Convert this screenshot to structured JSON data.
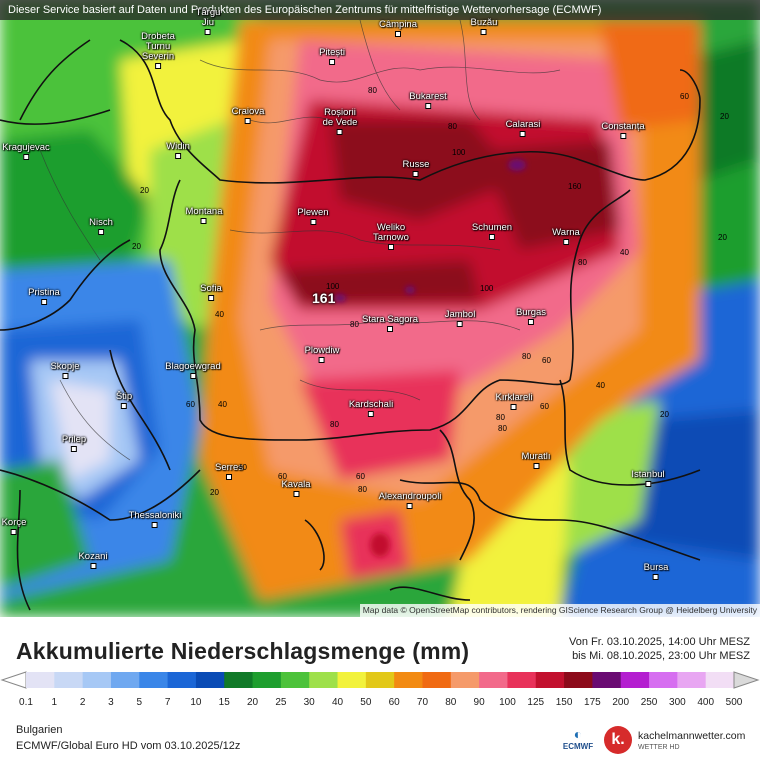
{
  "header": {
    "notice": "Dieser Service basiert auf Daten und Produkten des Europäischen Zentrums für mittelfristige Wettervorhersage (ECMWF)"
  },
  "map": {
    "attribution": "Map data © OpenStreetMap contributors, rendering GIScience Research Group @ Heidelberg University",
    "max_value_label": "161",
    "cities": [
      {
        "name": "Targu Jiu",
        "label": "Târgu\nJiu"
      },
      {
        "name": "Campina",
        "label": "Câmpina"
      },
      {
        "name": "Buzau",
        "label": "Buzău"
      },
      {
        "name": "Pitesti",
        "label": "Pitești"
      },
      {
        "name": "Drobeta Turnu Severin",
        "label": "Drobeta\nTurnu\nSeverin"
      },
      {
        "name": "Bukarest",
        "label": "Bukarest"
      },
      {
        "name": "Craiova",
        "label": "Craiova"
      },
      {
        "name": "Rosiorii de Vede",
        "label": "Roșiorii\nde Vede"
      },
      {
        "name": "Calarasi",
        "label": "Calarasi"
      },
      {
        "name": "Constanta",
        "label": "Constanța"
      },
      {
        "name": "Kragujevac",
        "label": "Kragujevac"
      },
      {
        "name": "Widin",
        "label": "Widin"
      },
      {
        "name": "Russe",
        "label": "Russe"
      },
      {
        "name": "Montana",
        "label": "Montana"
      },
      {
        "name": "Plewen",
        "label": "Plewen"
      },
      {
        "name": "Nisch",
        "label": "Nisch"
      },
      {
        "name": "Schumen",
        "label": "Schumen"
      },
      {
        "name": "Warna",
        "label": "Warna"
      },
      {
        "name": "Weliko Tarnowo",
        "label": "Weliko\nTarnowo"
      },
      {
        "name": "Pristina",
        "label": "Pristina"
      },
      {
        "name": "Sofia",
        "label": "Sofia"
      },
      {
        "name": "Stara Sagora",
        "label": "Stara Sagora"
      },
      {
        "name": "Jambol",
        "label": "Jambol"
      },
      {
        "name": "Burgas",
        "label": "Burgas"
      },
      {
        "name": "Plowdiw",
        "label": "Plowdiw"
      },
      {
        "name": "Skopje",
        "label": "Skopje"
      },
      {
        "name": "Blagoewgrad",
        "label": "Blagoewgrad"
      },
      {
        "name": "Stip",
        "label": "Štip"
      },
      {
        "name": "Kardschali",
        "label": "Kardschali"
      },
      {
        "name": "Kirklareli",
        "label": "Kırklareli"
      },
      {
        "name": "Prilep",
        "label": "Prilep"
      },
      {
        "name": "Muratli",
        "label": "Muratlı"
      },
      {
        "name": "Serres",
        "label": "Serres"
      },
      {
        "name": "Istanbul",
        "label": "Istanbul"
      },
      {
        "name": "Kavala",
        "label": "Kavala"
      },
      {
        "name": "Alexandroupoli",
        "label": "Alexandroupoli"
      },
      {
        "name": "Thessaloniki",
        "label": "Thessaloniki"
      },
      {
        "name": "Korce",
        "label": "Korçe"
      },
      {
        "name": "Kozani",
        "label": "Kozani"
      },
      {
        "name": "Bursa",
        "label": "Bursa"
      }
    ],
    "isolines": [
      "80",
      "80",
      "100",
      "160",
      "60",
      "20",
      "20",
      "80",
      "100",
      "20",
      "20",
      "40",
      "100",
      "80",
      "60",
      "80",
      "40",
      "80",
      "60",
      "60",
      "40",
      "20",
      "40",
      "80",
      "60",
      "80",
      "20",
      "60",
      "80",
      "40"
    ]
  },
  "legend": {
    "title": "Akkumulierte Niederschlagsmenge (mm)",
    "period_from": "Von Fr. 03.10.2025, 14:00 Uhr MESZ",
    "period_to": "bis Mi. 08.10.2025, 23:00 Uhr MESZ",
    "thresholds": [
      "0.1",
      "1",
      "2",
      "3",
      "5",
      "7",
      "10",
      "15",
      "20",
      "25",
      "30",
      "40",
      "50",
      "60",
      "70",
      "80",
      "90",
      "100",
      "125",
      "150",
      "175",
      "200",
      "250",
      "300",
      "400",
      "500"
    ],
    "colors": [
      "#e3e3f5",
      "#c8d8f5",
      "#a6c8f5",
      "#6fa8f0",
      "#3a86e8",
      "#1b66d6",
      "#0a4bb5",
      "#117a28",
      "#1e9e2e",
      "#4cc23a",
      "#9ee04a",
      "#f2f23c",
      "#e2c818",
      "#f28a12",
      "#f06a12",
      "#f59a6a",
      "#f26a8a",
      "#e8325a",
      "#c2102e",
      "#8c0a1a",
      "#6a0a72",
      "#b41ed0",
      "#d66ef0",
      "#e8a6f2",
      "#f2def5",
      "#dadada"
    ]
  },
  "footer": {
    "region": "Bulgarien",
    "model": "ECMWF/Global Euro HD vom  03.10.2025/12z",
    "ecmwf_logo": "ECMWF",
    "kachelmann_name": "kachelmannwetter.com",
    "kachelmann_sub": "WETTER HD",
    "kachelmann_mark": "k."
  }
}
